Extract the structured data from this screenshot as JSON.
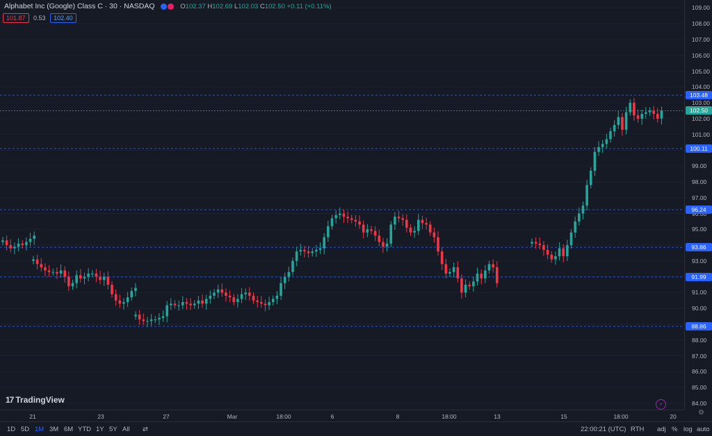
{
  "header": {
    "title": "Alphabet Inc (Google) Class C · 30 · NASDAQ",
    "o_key": "O",
    "o": "102.37",
    "h_key": "H",
    "h": "102.69",
    "l_key": "L",
    "l": "102.03",
    "c_key": "C",
    "c": "102.50",
    "change": "+0.11 (+0.11%)"
  },
  "trade": {
    "sell": "101.87",
    "spread": "0.53",
    "buy": "102.40"
  },
  "logo_text": "TradingView",
  "logo_mark": "17",
  "bolt_icon": "lightning-icon",
  "gear_icon": "settings-gear-icon",
  "bottom_bar": {
    "ranges": [
      "1D",
      "5D",
      "1M",
      "3M",
      "6M",
      "YTD",
      "1Y",
      "5Y",
      "All"
    ],
    "active_range": "1M",
    "compare_icon": "calendar-range-icon",
    "time": "22:00:21 (UTC)",
    "session": "RTH",
    "adj": "adj",
    "percent": "%",
    "log": "log",
    "auto": "auto"
  },
  "colors": {
    "background": "#161a25",
    "up": "#26a69a",
    "down": "#f23645",
    "line_blue": "#2962ff",
    "line_green": "#26a69a"
  },
  "chart_data": {
    "type": "candlestick",
    "y_ticks": [
      "84.00",
      "85.00",
      "86.00",
      "87.00",
      "88.00",
      "89.00",
      "90.00",
      "91.00",
      "92.00",
      "93.00",
      "94.00",
      "95.00",
      "96.00",
      "97.00",
      "98.00",
      "99.00",
      "100.00",
      "101.00",
      "102.00",
      "103.00",
      "104.00",
      "105.00",
      "106.00",
      "107.00",
      "108.00",
      "109.00"
    ],
    "ylim": [
      83.6,
      109.5
    ],
    "x_labels": [
      "21",
      "23",
      "27",
      "Mar",
      "18:00",
      "6",
      "8",
      "18:00",
      "13",
      "15",
      "18:00",
      "20"
    ],
    "horizontal_lines": [
      {
        "value": 103.48,
        "label": "103.48",
        "color": "#2962ff"
      },
      {
        "value": 102.5,
        "label": "102.50",
        "color": "#26a69a"
      },
      {
        "value": 100.11,
        "label": "100.11",
        "color": "#2962ff"
      },
      {
        "value": 96.24,
        "label": "96.24",
        "color": "#2962ff"
      },
      {
        "value": 93.86,
        "label": "93.86",
        "color": "#2962ff"
      },
      {
        "value": 91.99,
        "label": "91.99",
        "color": "#2962ff"
      },
      {
        "value": 88.86,
        "label": "88.86",
        "color": "#2962ff"
      }
    ],
    "segments": [
      {
        "closes": [
          94.3,
          94.0,
          93.8,
          93.9,
          94.1,
          94.0,
          94.2,
          94.4,
          94.6
        ]
      },
      {
        "closes": [
          93.1,
          92.8,
          92.6,
          92.4,
          92.3,
          92.3,
          92.2,
          92.4,
          92.0,
          91.4,
          91.6,
          92.1,
          91.9,
          92.0,
          92.2,
          92.2,
          92.0,
          91.8,
          92.0,
          91.5,
          90.9,
          90.5,
          90.3,
          90.4,
          90.7,
          91.1,
          91.3
        ]
      },
      {
        "closes": [
          89.6,
          89.3,
          89.2,
          89.2,
          89.3,
          89.3,
          89.4,
          89.5,
          90.2,
          90.3,
          90.2,
          90.2,
          90.4,
          90.3,
          90.2,
          90.3,
          90.5,
          90.3,
          90.6,
          90.8,
          91.0,
          91.2,
          91.0,
          90.8,
          90.7,
          90.4,
          90.6,
          90.9,
          91.0,
          90.8,
          90.5,
          90.4,
          90.3,
          90.2,
          90.4,
          90.6,
          90.8,
          91.6,
          92.0,
          92.3,
          93.0,
          93.6,
          93.7,
          93.6,
          93.5,
          93.6,
          93.7,
          93.8,
          94.5,
          95.2,
          95.7,
          95.9,
          96.0,
          95.8,
          95.7,
          95.6,
          95.5,
          95.3,
          94.8,
          95.0,
          94.9,
          94.6,
          94.2,
          93.9,
          94.1,
          95.3,
          95.8,
          95.7,
          95.6,
          95.1,
          94.8,
          94.9,
          95.6,
          95.4,
          95.3,
          94.8,
          94.5,
          93.6,
          92.8,
          92.2,
          92.3,
          92.6,
          91.9,
          91.0,
          91.5,
          91.4,
          91.7,
          92.2,
          91.9,
          92.4,
          92.8,
          92.6,
          91.6
        ]
      },
      {
        "closes": [
          94.2,
          94.1,
          94.0,
          93.7,
          93.4,
          93.1,
          93.3,
          93.8,
          93.3,
          94.0,
          94.8,
          95.5,
          96.0,
          96.5,
          97.8,
          98.7,
          99.9,
          100.2,
          100.4,
          100.7,
          101.2,
          101.6,
          102.1,
          101.3,
          102.4,
          103.0,
          102.2,
          102.0,
          102.3,
          102.4,
          102.5,
          102.3,
          102.0,
          102.5
        ]
      }
    ]
  }
}
